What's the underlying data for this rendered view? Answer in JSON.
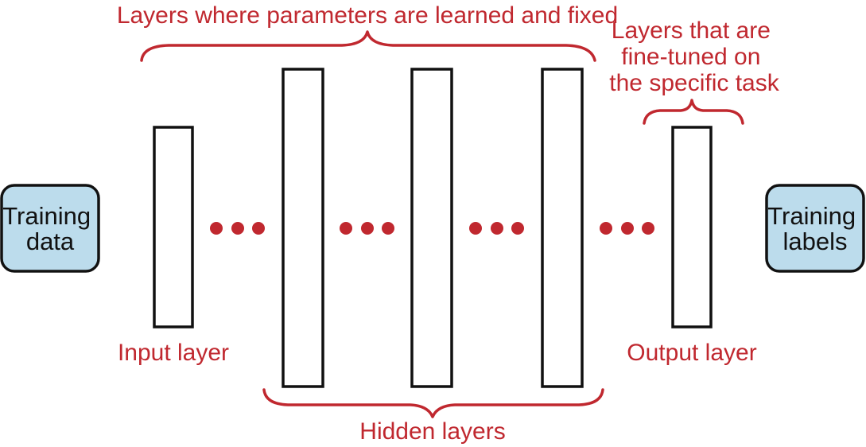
{
  "labels": {
    "top_brace": "Layers where parameters are learned and fixed",
    "fine_tuned": [
      "Layers that are",
      "fine-tuned on",
      "the specific task"
    ],
    "input_layer": "Input layer",
    "output_layer": "Output layer",
    "hidden_layers": "Hidden layers"
  },
  "boxes": {
    "training_data": [
      "Training",
      "data"
    ],
    "training_labels": [
      "Training",
      "labels"
    ]
  },
  "colors": {
    "accent": "#c0282f",
    "box_fill": "#bcdcec",
    "stroke": "#111111"
  }
}
